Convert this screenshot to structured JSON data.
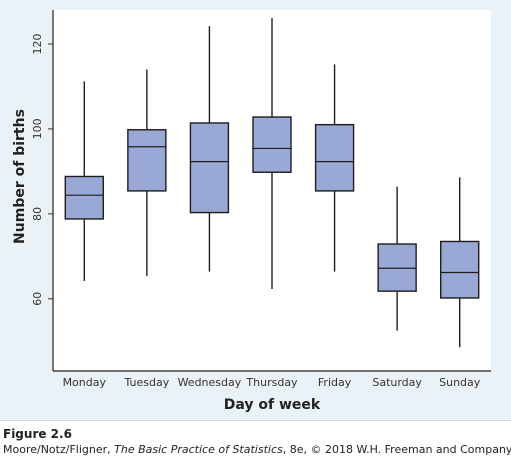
{
  "chart_data": {
    "type": "box",
    "xlabel": "Day of week",
    "ylabel": "Number of births",
    "ylim": [
      43,
      128
    ],
    "yticks": [
      60,
      80,
      100,
      120
    ],
    "categories": [
      "Monday",
      "Tuesday",
      "Wednesday",
      "Thursday",
      "Friday",
      "Saturday",
      "Sunday"
    ],
    "boxes": [
      {
        "min": 64.2,
        "q1": 78.8,
        "median": 84.4,
        "q3": 88.8,
        "max": 111.2
      },
      {
        "min": 65.4,
        "q1": 85.4,
        "median": 95.8,
        "q3": 99.8,
        "max": 114.0
      },
      {
        "min": 66.4,
        "q1": 80.3,
        "median": 92.3,
        "q3": 101.4,
        "max": 124.2
      },
      {
        "min": 62.3,
        "q1": 89.8,
        "median": 95.4,
        "q3": 102.8,
        "max": 126.1
      },
      {
        "min": 66.4,
        "q1": 85.4,
        "median": 92.3,
        "q3": 101.0,
        "max": 115.2
      },
      {
        "min": 52.5,
        "q1": 61.8,
        "median": 67.2,
        "q3": 72.9,
        "max": 86.4
      },
      {
        "min": 48.6,
        "q1": 60.2,
        "median": 66.2,
        "q3": 73.5,
        "max": 88.6
      }
    ],
    "colors": {
      "box_fill": "#9aa8d6",
      "line": "#1e1e1e",
      "background": "#eaf2f7",
      "plot_background": "#ffffff"
    },
    "grid": false
  },
  "caption": {
    "figure_label": "Figure 2.6",
    "credit_authors": "Moore/Notz/Fligner, ",
    "credit_title": "The Basic Practice of Statistics",
    "credit_rest": ", 8e, © 2018 W.H. Freeman and Company"
  }
}
